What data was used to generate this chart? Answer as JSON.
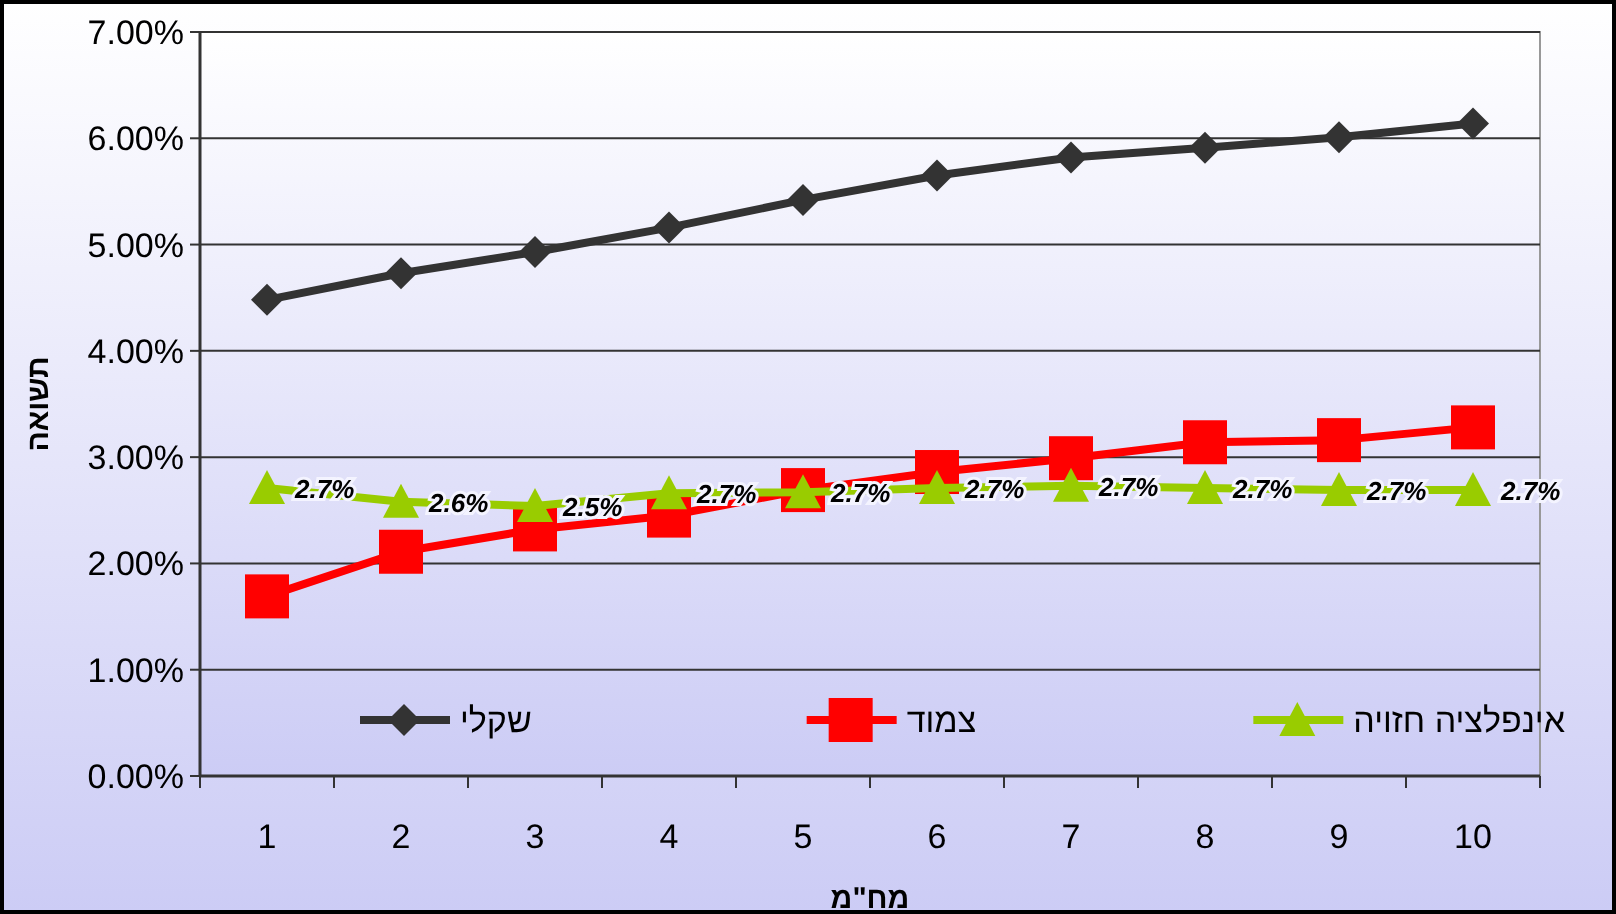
{
  "chart_data": {
    "type": "line",
    "xlabel": "מח\"מ",
    "ylabel": "תשואה",
    "categories": [
      "1",
      "2",
      "3",
      "4",
      "5",
      "6",
      "7",
      "8",
      "9",
      "10"
    ],
    "series": [
      {
        "name": "שקלי",
        "color": "#333333",
        "marker": "diamond",
        "values": [
          4.48,
          4.73,
          4.93,
          5.16,
          5.42,
          5.65,
          5.82,
          5.91,
          6.01,
          6.14
        ]
      },
      {
        "name": "צמוד",
        "color": "#ff0000",
        "marker": "square",
        "values": [
          1.69,
          2.11,
          2.32,
          2.45,
          2.69,
          2.86,
          2.99,
          3.14,
          3.16,
          3.28
        ]
      },
      {
        "name": "אינפלציה חזויה",
        "color": "#99cc00",
        "marker": "triangle",
        "values": [
          2.71,
          2.58,
          2.54,
          2.66,
          2.67,
          2.71,
          2.73,
          2.71,
          2.69,
          2.69
        ],
        "value_labels": [
          "2.7%",
          "2.6%",
          "2.5%",
          "2.7%",
          "2.7%",
          "2.7%",
          "2.7%",
          "2.7%",
          "2.7%",
          "2.7%"
        ]
      }
    ],
    "ylim": [
      0,
      7
    ],
    "yticks": [
      {
        "value": 0,
        "label": "0.00%"
      },
      {
        "value": 1,
        "label": "1.00%"
      },
      {
        "value": 2,
        "label": "2.00%"
      },
      {
        "value": 3,
        "label": "3.00%"
      },
      {
        "value": 4,
        "label": "4.00%"
      },
      {
        "value": 5,
        "label": "5.00%"
      },
      {
        "value": 6,
        "label": "6.00%"
      },
      {
        "value": 7,
        "label": "7.00%"
      }
    ],
    "grid": "y",
    "legend": "bottom",
    "line_style": "solid"
  }
}
